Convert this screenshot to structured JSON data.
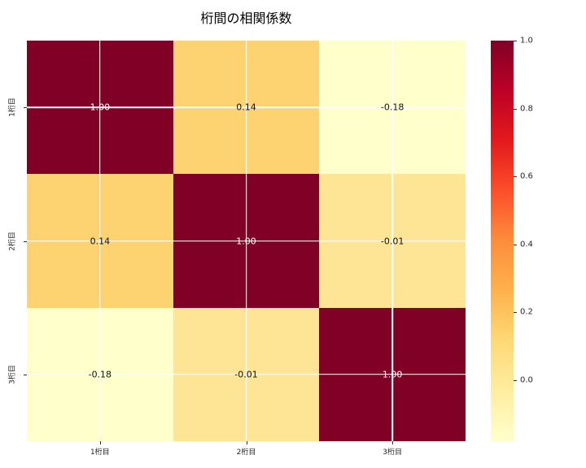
{
  "title": "桁間の相関係数",
  "colors": {
    "background": "#ffffff",
    "grid_line": "#ffffff",
    "tick": "#262626",
    "diagonal_cell": "#800026",
    "min_cell": "#ffffcc"
  },
  "chart_data": {
    "type": "heatmap",
    "title": "桁間の相関係数",
    "categories": [
      "1桁目",
      "2桁目",
      "3桁目"
    ],
    "x_tick_labels": [
      "1桁目",
      "2桁目",
      "3桁目"
    ],
    "y_tick_labels": [
      "1桁目",
      "2桁目",
      "3桁目"
    ],
    "matrix": [
      [
        1.0,
        0.14,
        -0.18
      ],
      [
        0.14,
        1.0,
        -0.01
      ],
      [
        -0.18,
        -0.01,
        1.0
      ]
    ],
    "cell_labels": [
      [
        "1.00",
        "0.14",
        "-0.18"
      ],
      [
        "0.14",
        "1.00",
        "-0.01"
      ],
      [
        "-0.18",
        "-0.01",
        "1.00"
      ]
    ],
    "cell_colors": [
      [
        "#800026",
        "#fdd271",
        "#ffffcc"
      ],
      [
        "#fdd271",
        "#800026",
        "#fee595"
      ],
      [
        "#ffffcc",
        "#fee595",
        "#800026"
      ]
    ],
    "cell_text_colors": [
      [
        "#ffffff",
        "#111111",
        "#111111"
      ],
      [
        "#111111",
        "#ffffff",
        "#111111"
      ],
      [
        "#111111",
        "#111111",
        "#ffffff"
      ]
    ],
    "vmin": -0.18,
    "vmax": 1.0,
    "colormap": "YlOrRd",
    "colormap_stops": [
      "#ffffcc",
      "#ffeda0",
      "#fed976",
      "#feb24c",
      "#fd8d3c",
      "#fc4e2a",
      "#e31a1c",
      "#bd0026",
      "#800026"
    ],
    "colorbar_ticks": [
      {
        "value": 1.0,
        "label": "1.0"
      },
      {
        "value": 0.8,
        "label": "0.8"
      },
      {
        "value": 0.6,
        "label": "0.6"
      },
      {
        "value": 0.4,
        "label": "0.4"
      },
      {
        "value": 0.2,
        "label": "0.2"
      },
      {
        "value": 0.0,
        "label": "0.0"
      }
    ],
    "grid": true,
    "legend_position": "right-colorbar",
    "xlabel": "",
    "ylabel": ""
  }
}
